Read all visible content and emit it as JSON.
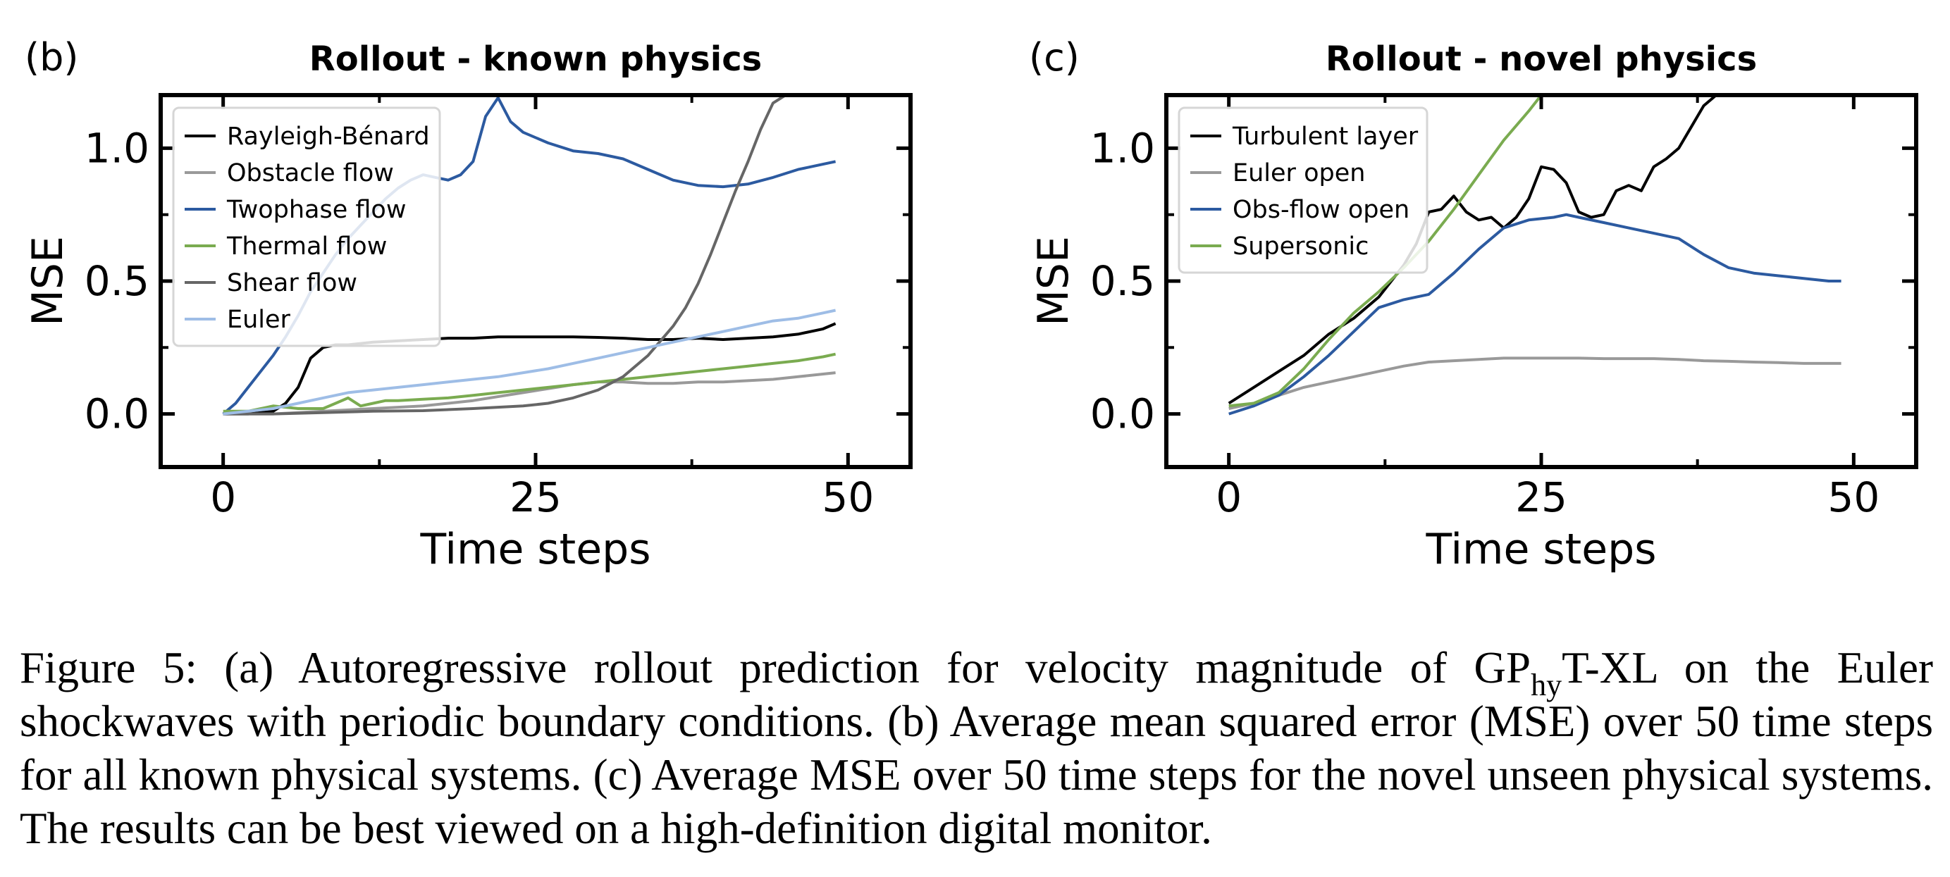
{
  "chart_data": [
    {
      "type": "line",
      "panel_label": "(b)",
      "title": "Rollout - known physics",
      "xlabel": "Time steps",
      "ylabel": "MSE",
      "xlim": [
        -5,
        55
      ],
      "ylim": [
        -0.2,
        1.2
      ],
      "xticks": [
        0,
        25,
        50
      ],
      "xtick_labels": [
        "0",
        "25",
        "50"
      ],
      "yticks": [
        0.0,
        0.5,
        1.0
      ],
      "ytick_labels": [
        "0.0",
        "0.5",
        "1.0"
      ],
      "grid": false,
      "legend_position": "top-left",
      "series": [
        {
          "name": "Rayleigh-Bénard",
          "color": "#000000",
          "x": [
            0,
            2,
            4,
            5,
            6,
            7,
            8,
            9,
            10,
            12,
            14,
            16,
            18,
            20,
            22,
            24,
            26,
            28,
            30,
            32,
            34,
            36,
            38,
            40,
            42,
            44,
            46,
            48,
            49
          ],
          "y": [
            0.0,
            0.0,
            0.01,
            0.04,
            0.1,
            0.21,
            0.25,
            0.26,
            0.26,
            0.27,
            0.275,
            0.28,
            0.285,
            0.285,
            0.29,
            0.29,
            0.29,
            0.29,
            0.288,
            0.285,
            0.28,
            0.28,
            0.285,
            0.28,
            0.285,
            0.29,
            0.3,
            0.32,
            0.34
          ]
        },
        {
          "name": "Obstacle flow",
          "color": "#999999",
          "x": [
            0,
            4,
            8,
            12,
            16,
            20,
            24,
            28,
            30,
            32,
            34,
            36,
            38,
            40,
            42,
            44,
            46,
            48,
            49
          ],
          "y": [
            0.0,
            0.0,
            0.01,
            0.02,
            0.03,
            0.05,
            0.08,
            0.11,
            0.12,
            0.12,
            0.115,
            0.115,
            0.12,
            0.12,
            0.125,
            0.13,
            0.14,
            0.15,
            0.155
          ]
        },
        {
          "name": "Twophase flow",
          "color": "#2c5aa0",
          "x": [
            0,
            1,
            2,
            3,
            4,
            5,
            6,
            7,
            8,
            9,
            10,
            11,
            12,
            13,
            14,
            15,
            16,
            17,
            18,
            19,
            20,
            21,
            22,
            23,
            24,
            26,
            28,
            30,
            32,
            34,
            36,
            38,
            40,
            42,
            44,
            46,
            48,
            49
          ],
          "y": [
            0.0,
            0.04,
            0.1,
            0.16,
            0.22,
            0.29,
            0.37,
            0.46,
            0.53,
            0.6,
            0.66,
            0.71,
            0.76,
            0.81,
            0.85,
            0.88,
            0.9,
            0.89,
            0.88,
            0.9,
            0.95,
            1.12,
            1.19,
            1.1,
            1.06,
            1.02,
            0.99,
            0.98,
            0.96,
            0.92,
            0.88,
            0.86,
            0.855,
            0.865,
            0.89,
            0.92,
            0.94,
            0.95
          ]
        },
        {
          "name": "Thermal flow",
          "color": "#7aab50",
          "x": [
            0,
            2,
            4,
            6,
            8,
            9,
            10,
            11,
            12,
            13,
            14,
            16,
            18,
            20,
            22,
            24,
            26,
            28,
            30,
            32,
            34,
            36,
            38,
            40,
            42,
            44,
            46,
            48,
            49
          ],
          "y": [
            0.01,
            0.01,
            0.03,
            0.02,
            0.02,
            0.04,
            0.06,
            0.03,
            0.04,
            0.05,
            0.05,
            0.055,
            0.06,
            0.07,
            0.08,
            0.09,
            0.1,
            0.11,
            0.12,
            0.13,
            0.14,
            0.15,
            0.16,
            0.17,
            0.18,
            0.19,
            0.2,
            0.215,
            0.225
          ]
        },
        {
          "name": "Shear flow",
          "color": "#666666",
          "x": [
            0,
            4,
            8,
            12,
            16,
            20,
            24,
            26,
            28,
            30,
            32,
            34,
            36,
            37,
            38,
            39,
            40,
            41,
            42,
            43,
            44,
            45
          ],
          "y": [
            0.0,
            0.0,
            0.005,
            0.01,
            0.012,
            0.02,
            0.03,
            0.04,
            0.06,
            0.09,
            0.14,
            0.22,
            0.33,
            0.4,
            0.49,
            0.6,
            0.72,
            0.84,
            0.95,
            1.07,
            1.17,
            1.2
          ]
        },
        {
          "name": "Euler",
          "color": "#9ebde6",
          "x": [
            0,
            2,
            4,
            6,
            8,
            10,
            12,
            14,
            16,
            18,
            20,
            22,
            24,
            26,
            28,
            30,
            32,
            34,
            36,
            38,
            40,
            42,
            44,
            46,
            48,
            49
          ],
          "y": [
            0.0,
            0.01,
            0.02,
            0.04,
            0.06,
            0.08,
            0.09,
            0.1,
            0.11,
            0.12,
            0.13,
            0.14,
            0.155,
            0.17,
            0.19,
            0.21,
            0.23,
            0.25,
            0.27,
            0.29,
            0.31,
            0.33,
            0.35,
            0.36,
            0.38,
            0.39
          ]
        }
      ]
    },
    {
      "type": "line",
      "panel_label": "(c)",
      "title": "Rollout - novel physics",
      "xlabel": "Time steps",
      "ylabel": "MSE",
      "xlim": [
        -5,
        55
      ],
      "ylim": [
        -0.2,
        1.2
      ],
      "xticks": [
        0,
        25,
        50
      ],
      "xtick_labels": [
        "0",
        "25",
        "50"
      ],
      "yticks": [
        0.0,
        0.5,
        1.0
      ],
      "ytick_labels": [
        "0.0",
        "0.5",
        "1.0"
      ],
      "grid": false,
      "legend_position": "top-left",
      "series": [
        {
          "name": "Turbulent layer",
          "color": "#000000",
          "x": [
            0,
            2,
            4,
            6,
            8,
            10,
            12,
            14,
            15,
            16,
            17,
            18,
            19,
            20,
            21,
            22,
            23,
            24,
            25,
            26,
            27,
            28,
            29,
            30,
            31,
            32,
            33,
            34,
            35,
            36,
            37,
            38,
            39
          ],
          "y": [
            0.04,
            0.1,
            0.16,
            0.22,
            0.3,
            0.36,
            0.44,
            0.56,
            0.64,
            0.76,
            0.77,
            0.82,
            0.76,
            0.73,
            0.74,
            0.7,
            0.74,
            0.81,
            0.93,
            0.92,
            0.87,
            0.76,
            0.74,
            0.75,
            0.84,
            0.86,
            0.84,
            0.93,
            0.96,
            1.0,
            1.08,
            1.16,
            1.2
          ]
        },
        {
          "name": "Euler open",
          "color": "#999999",
          "x": [
            0,
            2,
            4,
            6,
            8,
            10,
            12,
            14,
            16,
            18,
            20,
            22,
            24,
            26,
            28,
            30,
            32,
            34,
            36,
            38,
            40,
            42,
            44,
            46,
            48,
            49
          ],
          "y": [
            0.02,
            0.04,
            0.07,
            0.1,
            0.12,
            0.14,
            0.16,
            0.18,
            0.195,
            0.2,
            0.205,
            0.21,
            0.21,
            0.21,
            0.21,
            0.208,
            0.208,
            0.208,
            0.205,
            0.2,
            0.198,
            0.195,
            0.193,
            0.19,
            0.19,
            0.19
          ]
        },
        {
          "name": "Obs-flow open",
          "color": "#2c5aa0",
          "x": [
            0,
            2,
            4,
            6,
            8,
            10,
            12,
            14,
            16,
            18,
            20,
            22,
            24,
            26,
            27,
            28,
            30,
            32,
            34,
            36,
            38,
            40,
            42,
            44,
            46,
            48,
            49
          ],
          "y": [
            0.0,
            0.03,
            0.07,
            0.14,
            0.22,
            0.31,
            0.4,
            0.43,
            0.45,
            0.53,
            0.62,
            0.7,
            0.73,
            0.74,
            0.75,
            0.74,
            0.72,
            0.7,
            0.68,
            0.66,
            0.6,
            0.55,
            0.53,
            0.52,
            0.51,
            0.5,
            0.5
          ]
        },
        {
          "name": "Supersonic",
          "color": "#7aab50",
          "x": [
            0,
            2,
            4,
            6,
            8,
            10,
            12,
            14,
            16,
            18,
            20,
            22,
            24,
            25
          ],
          "y": [
            0.03,
            0.04,
            0.08,
            0.17,
            0.28,
            0.38,
            0.46,
            0.55,
            0.65,
            0.77,
            0.9,
            1.03,
            1.14,
            1.2
          ]
        }
      ]
    }
  ],
  "caption": {
    "prefix": "Figure 5: (a) Autoregressive rollout prediction for velocity magnitude of GP",
    "sub": "hy",
    "rest": "T-XL on the Euler shockwaves with periodic boundary conditions. (b) Average mean squared error (MSE) over 50 time steps for all known physical systems. (c) Average MSE over 50 time steps for the novel unseen physical systems. The results can be best viewed on a high-definition digital monitor."
  }
}
